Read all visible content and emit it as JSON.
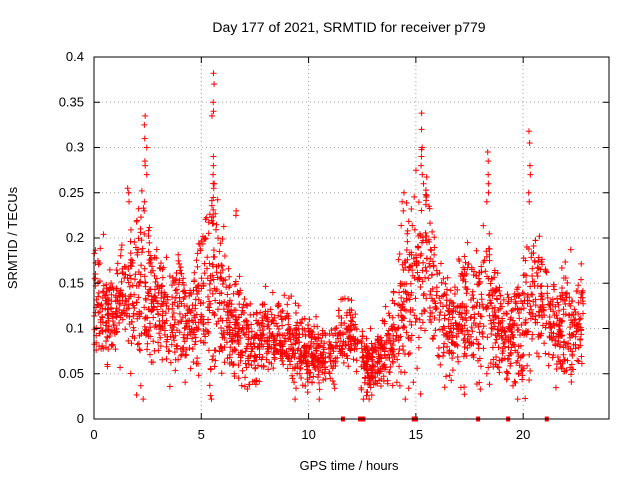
{
  "chart_data": {
    "type": "scatter",
    "title": "Day 177 of 2021, SRMTID for receiver p779",
    "xlabel": "GPS time / hours",
    "ylabel": "SRMTID / TECUs",
    "xlim": [
      0,
      24
    ],
    "ylim": [
      0,
      0.4
    ],
    "xticks": [
      0,
      5,
      10,
      15,
      20
    ],
    "xtick_labels": [
      "0",
      "5",
      "10",
      "15",
      "20"
    ],
    "yticks": [
      0,
      0.05,
      0.1,
      0.15,
      0.2,
      0.25,
      0.3,
      0.35,
      0.4
    ],
    "ytick_labels": [
      "0",
      "0.05",
      "0.1",
      "0.15",
      "0.2",
      "0.25",
      "0.3",
      "0.35",
      "0.4"
    ],
    "grid": true,
    "marker": "+",
    "color": "#ff0000",
    "series": [
      {
        "name": "SRMTID",
        "color": "#ff0000",
        "marker": "plus",
        "profile": {
          "hours": [
            0,
            0.3,
            0.6,
            1.0,
            1.5,
            2.0,
            2.3,
            2.6,
            3.0,
            3.5,
            4.0,
            4.5,
            5.0,
            5.5,
            6.0,
            6.5,
            7.0,
            7.5,
            8.0,
            8.5,
            9.0,
            9.5,
            10.0,
            10.5,
            11.0,
            11.5,
            12.0,
            12.5,
            13.0,
            13.5,
            14.0,
            14.5,
            15.0,
            15.3,
            15.6,
            16.0,
            16.5,
            17.0,
            17.5,
            18.0,
            18.3,
            18.6,
            19.0,
            19.5,
            20.0,
            20.3,
            20.6,
            21.0,
            21.3,
            21.6,
            22.0,
            22.5,
            22.8
          ],
          "center": [
            0.14,
            0.13,
            0.11,
            0.12,
            0.13,
            0.15,
            0.14,
            0.13,
            0.12,
            0.12,
            0.12,
            0.11,
            0.14,
            0.16,
            0.12,
            0.1,
            0.09,
            0.08,
            0.09,
            0.09,
            0.09,
            0.08,
            0.07,
            0.065,
            0.07,
            0.09,
            0.1,
            0.06,
            0.06,
            0.07,
            0.09,
            0.13,
            0.15,
            0.18,
            0.17,
            0.13,
            0.1,
            0.11,
            0.12,
            0.12,
            0.14,
            0.12,
            0.1,
            0.09,
            0.1,
            0.14,
            0.15,
            0.13,
            0.1,
            0.1,
            0.11,
            0.1,
            0.12
          ],
          "spread": [
            0.03,
            0.04,
            0.03,
            0.03,
            0.04,
            0.05,
            0.07,
            0.04,
            0.035,
            0.035,
            0.035,
            0.03,
            0.05,
            0.08,
            0.04,
            0.03,
            0.03,
            0.025,
            0.025,
            0.025,
            0.025,
            0.025,
            0.02,
            0.02,
            0.02,
            0.025,
            0.02,
            0.02,
            0.02,
            0.02,
            0.03,
            0.05,
            0.06,
            0.08,
            0.06,
            0.04,
            0.03,
            0.035,
            0.04,
            0.05,
            0.06,
            0.04,
            0.03,
            0.03,
            0.05,
            0.06,
            0.04,
            0.04,
            0.03,
            0.03,
            0.035,
            0.03,
            0.03
          ]
        },
        "peaks": [
          {
            "x": 2.4,
            "values": [
              0.335,
              0.325,
              0.31,
              0.3,
              0.285,
              0.28,
              0.27,
              0.24,
              0.23
            ]
          },
          {
            "x": 5.55,
            "values": [
              0.382,
              0.37,
              0.35,
              0.34,
              0.335,
              0.29,
              0.28,
              0.27,
              0.26
            ]
          },
          {
            "x": 15.3,
            "values": [
              0.338,
              0.32,
              0.3,
              0.29,
              0.28,
              0.27,
              0.26
            ]
          },
          {
            "x": 18.35,
            "values": [
              0.295,
              0.285,
              0.27,
              0.26,
              0.25,
              0.24
            ]
          },
          {
            "x": 20.3,
            "values": [
              0.318,
              0.305,
              0.28,
              0.27,
              0.25,
              0.24
            ]
          },
          {
            "x": 6.6,
            "values": [
              0.23,
              0.225
            ]
          },
          {
            "x": 14.4,
            "values": [
              0.25,
              0.24,
              0.23
            ]
          },
          {
            "x": 1.6,
            "values": [
              0.255,
              0.25,
              0.24
            ]
          }
        ],
        "gaps": [
          [
            10.8,
            10.95
          ],
          [
            12.3,
            12.45
          ]
        ],
        "zero_markers": [
          11.6,
          12.4,
          12.55,
          14.9,
          15.0,
          17.9,
          19.3,
          21.1
        ]
      }
    ]
  }
}
